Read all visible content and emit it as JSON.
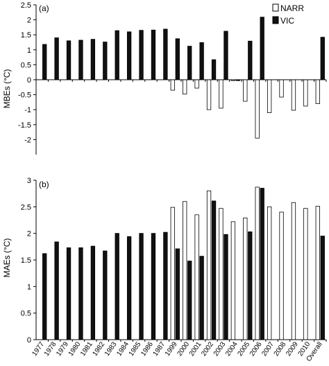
{
  "chart_data": [
    {
      "type": "bar",
      "panel_label": "(a)",
      "ylabel": "MBEs (°C)",
      "ylim": [
        -2.5,
        2.5
      ],
      "yticks": [
        "2.5",
        "2",
        "1.5",
        "1",
        "0.5",
        "0",
        "-0.5",
        "-1",
        "-1.5",
        "-2"
      ],
      "legend_position": "top-right",
      "categories": [
        "1977",
        "1978",
        "1979",
        "1980",
        "1981",
        "1982",
        "1983",
        "1984",
        "1985",
        "1986",
        "1987",
        "1999",
        "2000",
        "2001",
        "2002",
        "2003",
        "2004",
        "2005",
        "2006",
        "2007",
        "2008",
        "2009",
        "2010",
        "Overall"
      ],
      "series": [
        {
          "name": "NARR",
          "color": "#ffffff",
          "values": [
            null,
            null,
            null,
            null,
            null,
            null,
            null,
            null,
            null,
            null,
            null,
            -0.35,
            -0.48,
            -0.28,
            -1.0,
            -0.95,
            -0.03,
            -0.72,
            -1.95,
            -1.1,
            -0.58,
            -1.02,
            -0.88,
            -0.8
          ]
        },
        {
          "name": "VIC",
          "color": "#111111",
          "values": [
            1.18,
            1.4,
            1.3,
            1.32,
            1.35,
            1.26,
            1.64,
            1.6,
            1.65,
            1.66,
            1.69,
            1.37,
            1.12,
            1.24,
            0.67,
            1.62,
            -0.03,
            1.29,
            2.09,
            null,
            null,
            null,
            null,
            1.42
          ]
        }
      ]
    },
    {
      "type": "bar",
      "panel_label": "(b)",
      "ylabel": "MAEs (°C)",
      "ylim": [
        0,
        3
      ],
      "yticks": [
        "3",
        "2.5",
        "2",
        "1.5",
        "1",
        "0.5",
        "0"
      ],
      "categories": [
        "1977",
        "1978",
        "1979",
        "1980",
        "1981",
        "1982",
        "1983",
        "1984",
        "1985",
        "1986",
        "1987",
        "1999",
        "2000",
        "2001",
        "2002",
        "2003",
        "2004",
        "2005",
        "2006",
        "2007",
        "2008",
        "2009",
        "2010",
        "Overall"
      ],
      "series": [
        {
          "name": "NARR",
          "color": "#ffffff",
          "values": [
            null,
            null,
            null,
            null,
            null,
            null,
            null,
            null,
            null,
            null,
            null,
            2.49,
            2.6,
            2.35,
            2.8,
            2.47,
            2.22,
            2.29,
            2.87,
            2.5,
            2.4,
            2.58,
            2.47,
            2.51
          ]
        },
        {
          "name": "VIC",
          "color": "#111111",
          "values": [
            1.62,
            1.84,
            1.73,
            1.73,
            1.76,
            1.67,
            2.0,
            1.94,
            2.0,
            2.0,
            2.02,
            1.71,
            1.48,
            1.57,
            2.61,
            1.98,
            null,
            2.03,
            2.85,
            null,
            null,
            null,
            null,
            1.95
          ]
        }
      ]
    }
  ]
}
